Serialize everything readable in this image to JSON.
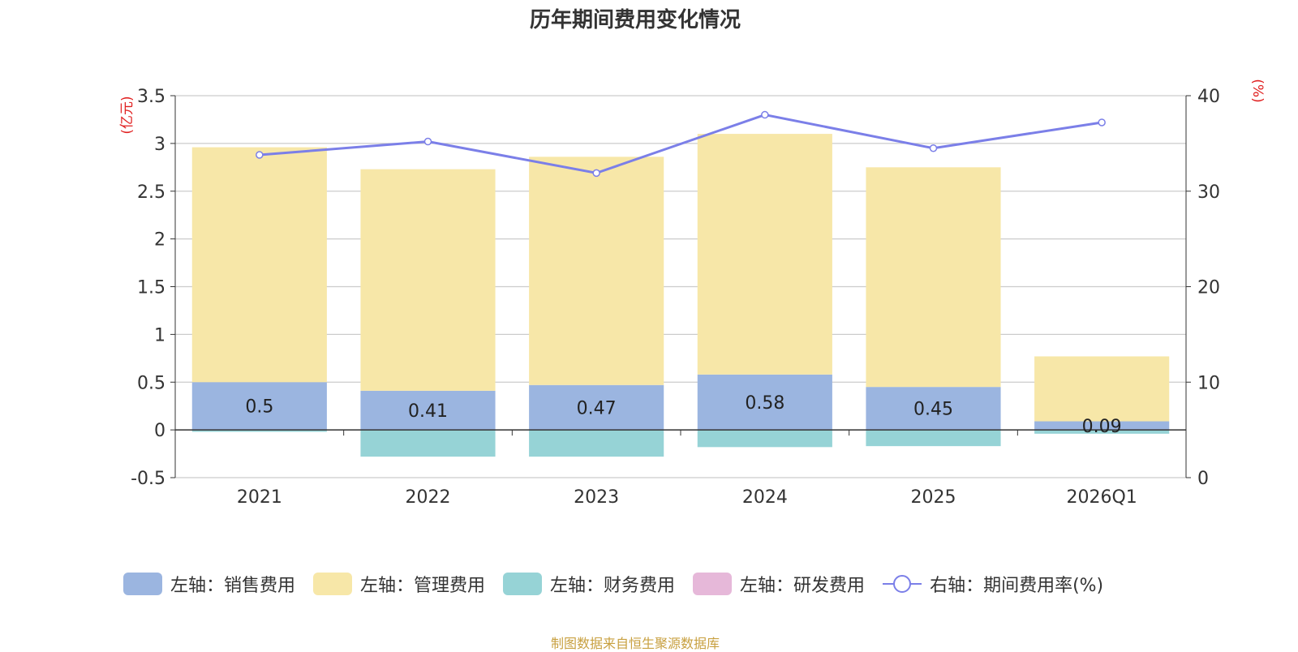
{
  "chart_data": {
    "type": "bar",
    "title": "历年期间费用变化情况",
    "categories": [
      "2021",
      "2022",
      "2023",
      "2024",
      "2025",
      "2026Q1"
    ],
    "left_axis": {
      "unit_label": "(亿元)",
      "ylim": [
        -0.5,
        3.5
      ],
      "ticks": [
        "-0.5",
        "0",
        "0.5",
        "1",
        "1.5",
        "2",
        "2.5",
        "3",
        "3.5"
      ]
    },
    "right_axis": {
      "unit_label": "(%)",
      "ylim": [
        0,
        40
      ],
      "ticks": [
        "0",
        "10",
        "20",
        "30",
        "40"
      ]
    },
    "series": [
      {
        "name": "左轴：销售费用",
        "color": "#9bb5e0",
        "axis": "left",
        "values": [
          0.5,
          0.41,
          0.47,
          0.58,
          0.45,
          0.09
        ],
        "labels": [
          "0.5",
          "0.41",
          "0.47",
          "0.58",
          "0.45",
          "0.09"
        ]
      },
      {
        "name": "左轴：管理费用",
        "color": "#f7e7a8",
        "axis": "left",
        "values": [
          2.46,
          2.32,
          2.39,
          2.52,
          2.3,
          0.68
        ]
      },
      {
        "name": "左轴：财务费用",
        "color": "#96d3d6",
        "axis": "left",
        "values": [
          -0.02,
          -0.28,
          -0.28,
          -0.18,
          -0.17,
          -0.04
        ]
      },
      {
        "name": "左轴：研发费用",
        "color": "#e6b8d9",
        "axis": "left",
        "values": [
          0,
          0,
          0,
          0,
          0,
          0
        ]
      },
      {
        "name": "右轴：期间费用率(%)",
        "color": "#7b7fe8",
        "axis": "right",
        "type": "line",
        "values": [
          33.8,
          35.2,
          31.9,
          38.0,
          34.5,
          37.2
        ]
      }
    ],
    "source": "制图数据来自恒生聚源数据库"
  }
}
